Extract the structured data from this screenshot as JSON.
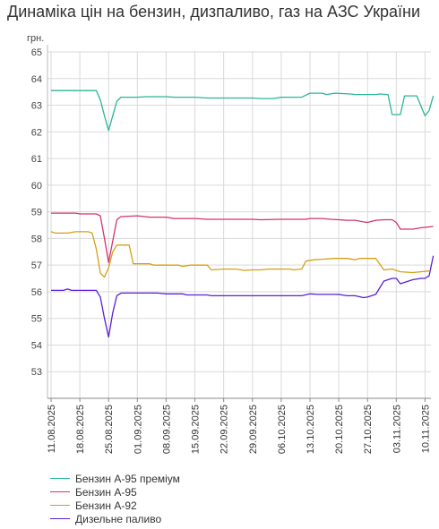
{
  "title": "Динаміка цін на бензин, дизпаливо, газ на АЗС України",
  "chart_data": {
    "type": "line",
    "ylabel": "грн.",
    "ylim": [
      52,
      65
    ],
    "yticks": [
      53,
      54,
      55,
      56,
      57,
      58,
      59,
      60,
      61,
      62,
      63,
      64,
      65
    ],
    "x_start": "2025-08-11",
    "x_end": "2025-11-11",
    "xtick_labels": [
      "11.08.2025",
      "18.08.2025",
      "25.08.2025",
      "01.09.2025",
      "08.09.2025",
      "15.09.2025",
      "22.09.2025",
      "29.09.2025",
      "06.10.2025",
      "13.10.2025",
      "20.10.2025",
      "27.10.2025",
      "03.11.2025",
      "10.11.2025"
    ],
    "grid": true,
    "legend_position": "bottom-left",
    "series": [
      {
        "name": "Бензин А-95 преміум",
        "color": "#2bb597",
        "points": [
          [
            "2025-08-11",
            63.55
          ],
          [
            "2025-08-18",
            63.55
          ],
          [
            "2025-08-22",
            63.55
          ],
          [
            "2025-08-23",
            63.2
          ],
          [
            "2025-08-24",
            62.6
          ],
          [
            "2025-08-25",
            62.05
          ],
          [
            "2025-08-26",
            62.6
          ],
          [
            "2025-08-27",
            63.15
          ],
          [
            "2025-08-28",
            63.3
          ],
          [
            "2025-09-01",
            63.3
          ],
          [
            "2025-09-03",
            63.32
          ],
          [
            "2025-09-08",
            63.32
          ],
          [
            "2025-09-10",
            63.3
          ],
          [
            "2025-09-15",
            63.3
          ],
          [
            "2025-09-18",
            63.27
          ],
          [
            "2025-09-22",
            63.27
          ],
          [
            "2025-09-29",
            63.27
          ],
          [
            "2025-10-01",
            63.25
          ],
          [
            "2025-10-04",
            63.25
          ],
          [
            "2025-10-06",
            63.3
          ],
          [
            "2025-10-11",
            63.3
          ],
          [
            "2025-10-13",
            63.45
          ],
          [
            "2025-10-16",
            63.45
          ],
          [
            "2025-10-17",
            63.4
          ],
          [
            "2025-10-19",
            63.45
          ],
          [
            "2025-10-23",
            63.42
          ],
          [
            "2025-10-24",
            63.4
          ],
          [
            "2025-10-29",
            63.4
          ],
          [
            "2025-10-30",
            63.42
          ],
          [
            "2025-11-01",
            63.4
          ],
          [
            "2025-11-02",
            62.65
          ],
          [
            "2025-11-04",
            62.65
          ],
          [
            "2025-11-05",
            63.35
          ],
          [
            "2025-11-08",
            63.35
          ],
          [
            "2025-11-10",
            62.6
          ],
          [
            "2025-11-11",
            62.8
          ],
          [
            "2025-11-12",
            63.35
          ]
        ]
      },
      {
        "name": "Бензин А-95",
        "color": "#d6336c",
        "points": [
          [
            "2025-08-11",
            58.95
          ],
          [
            "2025-08-17",
            58.95
          ],
          [
            "2025-08-18",
            58.92
          ],
          [
            "2025-08-22",
            58.92
          ],
          [
            "2025-08-23",
            58.85
          ],
          [
            "2025-08-24",
            58.0
          ],
          [
            "2025-08-25",
            57.1
          ],
          [
            "2025-08-26",
            57.9
          ],
          [
            "2025-08-27",
            58.7
          ],
          [
            "2025-08-28",
            58.82
          ],
          [
            "2025-09-01",
            58.85
          ],
          [
            "2025-09-04",
            58.8
          ],
          [
            "2025-09-08",
            58.8
          ],
          [
            "2025-09-10",
            58.75
          ],
          [
            "2025-09-15",
            58.75
          ],
          [
            "2025-09-18",
            58.72
          ],
          [
            "2025-09-22",
            58.72
          ],
          [
            "2025-09-29",
            58.72
          ],
          [
            "2025-10-01",
            58.7
          ],
          [
            "2025-10-06",
            58.72
          ],
          [
            "2025-10-12",
            58.72
          ],
          [
            "2025-10-13",
            58.75
          ],
          [
            "2025-10-16",
            58.75
          ],
          [
            "2025-10-18",
            58.72
          ],
          [
            "2025-10-20",
            58.7
          ],
          [
            "2025-10-22",
            58.68
          ],
          [
            "2025-10-24",
            58.68
          ],
          [
            "2025-10-26",
            58.62
          ],
          [
            "2025-10-27",
            58.6
          ],
          [
            "2025-10-29",
            58.68
          ],
          [
            "2025-10-31",
            58.7
          ],
          [
            "2025-11-02",
            58.7
          ],
          [
            "2025-11-03",
            58.6
          ],
          [
            "2025-11-04",
            58.35
          ],
          [
            "2025-11-07",
            58.35
          ],
          [
            "2025-11-09",
            58.4
          ],
          [
            "2025-11-12",
            58.45
          ]
        ]
      },
      {
        "name": "Бензин А-92",
        "color": "#d4a017",
        "points": [
          [
            "2025-08-11",
            58.25
          ],
          [
            "2025-08-12",
            58.2
          ],
          [
            "2025-08-15",
            58.2
          ],
          [
            "2025-08-17",
            58.25
          ],
          [
            "2025-08-20",
            58.25
          ],
          [
            "2025-08-21",
            58.2
          ],
          [
            "2025-08-22",
            57.6
          ],
          [
            "2025-08-23",
            56.7
          ],
          [
            "2025-08-24",
            56.55
          ],
          [
            "2025-08-25",
            56.9
          ],
          [
            "2025-08-26",
            57.5
          ],
          [
            "2025-08-27",
            57.75
          ],
          [
            "2025-08-30",
            57.75
          ],
          [
            "2025-08-31",
            57.05
          ],
          [
            "2025-09-04",
            57.05
          ],
          [
            "2025-09-05",
            57.0
          ],
          [
            "2025-09-11",
            57.0
          ],
          [
            "2025-09-12",
            56.95
          ],
          [
            "2025-09-14",
            57.0
          ],
          [
            "2025-09-18",
            57.0
          ],
          [
            "2025-09-19",
            56.82
          ],
          [
            "2025-09-22",
            56.85
          ],
          [
            "2025-09-25",
            56.85
          ],
          [
            "2025-09-27",
            56.8
          ],
          [
            "2025-09-29",
            56.82
          ],
          [
            "2025-10-01",
            56.82
          ],
          [
            "2025-10-03",
            56.85
          ],
          [
            "2025-10-08",
            56.85
          ],
          [
            "2025-10-09",
            56.82
          ],
          [
            "2025-10-11",
            56.85
          ],
          [
            "2025-10-12",
            57.15
          ],
          [
            "2025-10-14",
            57.2
          ],
          [
            "2025-10-16",
            57.22
          ],
          [
            "2025-10-19",
            57.25
          ],
          [
            "2025-10-22",
            57.25
          ],
          [
            "2025-10-24",
            57.2
          ],
          [
            "2025-10-25",
            57.25
          ],
          [
            "2025-10-29",
            57.25
          ],
          [
            "2025-10-31",
            56.82
          ],
          [
            "2025-11-02",
            56.85
          ],
          [
            "2025-11-04",
            56.75
          ],
          [
            "2025-11-07",
            56.72
          ],
          [
            "2025-11-09",
            56.75
          ],
          [
            "2025-11-11",
            56.78
          ]
        ]
      },
      {
        "name": "Дизельне паливо",
        "color": "#5b1fd6",
        "points": [
          [
            "2025-08-11",
            56.05
          ],
          [
            "2025-08-14",
            56.05
          ],
          [
            "2025-08-15",
            56.1
          ],
          [
            "2025-08-16",
            56.05
          ],
          [
            "2025-08-22",
            56.05
          ],
          [
            "2025-08-23",
            55.8
          ],
          [
            "2025-08-24",
            55.0
          ],
          [
            "2025-08-25",
            54.3
          ],
          [
            "2025-08-26",
            55.2
          ],
          [
            "2025-08-27",
            55.85
          ],
          [
            "2025-08-28",
            55.95
          ],
          [
            "2025-09-01",
            55.95
          ],
          [
            "2025-09-06",
            55.95
          ],
          [
            "2025-09-08",
            55.92
          ],
          [
            "2025-09-12",
            55.92
          ],
          [
            "2025-09-13",
            55.88
          ],
          [
            "2025-09-18",
            55.88
          ],
          [
            "2025-09-19",
            55.85
          ],
          [
            "2025-09-22",
            55.85
          ],
          [
            "2025-09-29",
            55.85
          ],
          [
            "2025-10-06",
            55.85
          ],
          [
            "2025-10-11",
            55.85
          ],
          [
            "2025-10-13",
            55.92
          ],
          [
            "2025-10-15",
            55.9
          ],
          [
            "2025-10-20",
            55.9
          ],
          [
            "2025-10-22",
            55.85
          ],
          [
            "2025-10-24",
            55.85
          ],
          [
            "2025-10-26",
            55.78
          ],
          [
            "2025-10-27",
            55.8
          ],
          [
            "2025-10-29",
            55.9
          ],
          [
            "2025-10-31",
            56.4
          ],
          [
            "2025-11-01",
            56.45
          ],
          [
            "2025-11-02",
            56.5
          ],
          [
            "2025-11-03",
            56.5
          ],
          [
            "2025-11-04",
            56.3
          ],
          [
            "2025-11-05",
            56.35
          ],
          [
            "2025-11-07",
            56.45
          ],
          [
            "2025-11-09",
            56.5
          ],
          [
            "2025-11-10",
            56.5
          ],
          [
            "2025-11-11",
            56.6
          ],
          [
            "2025-11-12",
            57.35
          ]
        ]
      }
    ]
  }
}
